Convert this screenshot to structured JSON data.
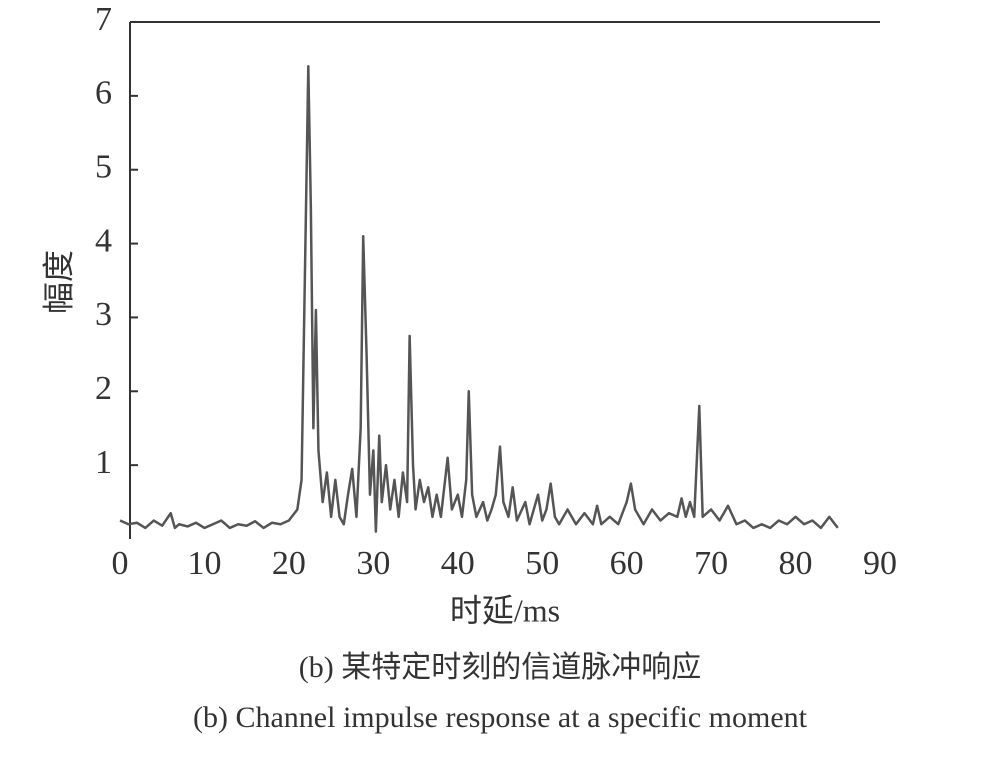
{
  "chart_data": {
    "type": "line",
    "y_label": "幅度",
    "x_label": "时延/ms",
    "captions": [
      "(b) 某特定时刻的信道脉冲响应",
      "(b) Channel impulse response at a specific moment"
    ],
    "x": [
      0,
      1,
      2,
      3,
      4,
      5,
      6,
      6.5,
      7,
      8,
      9,
      10,
      11,
      12,
      13,
      14,
      15,
      16,
      17,
      18,
      19,
      20,
      21,
      21.5,
      22,
      22.3,
      22.6,
      22.9,
      23.2,
      23.5,
      24,
      24.5,
      25,
      25.5,
      26,
      26.5,
      27,
      27.5,
      28,
      28.5,
      28.8,
      29.2,
      29.6,
      30,
      30.3,
      30.7,
      31,
      31.5,
      32,
      32.5,
      33,
      33.5,
      34,
      34.3,
      34.7,
      35,
      35.5,
      36,
      36.5,
      37,
      37.5,
      38,
      38.8,
      39.3,
      40,
      40.5,
      41,
      41.3,
      41.7,
      42.2,
      43,
      43.5,
      44,
      44.5,
      45,
      45.4,
      46,
      46.5,
      47,
      48,
      48.5,
      49,
      49.5,
      50,
      50.5,
      51,
      51.5,
      52,
      53,
      54,
      55,
      56,
      56.5,
      57,
      58,
      59,
      60,
      60.5,
      61,
      62,
      63,
      64,
      65,
      66,
      66.5,
      67,
      67.5,
      68,
      68.6,
      69,
      70,
      71,
      72,
      73,
      74,
      75,
      76,
      77,
      78,
      79,
      80,
      81,
      82,
      83,
      84,
      85
    ],
    "series": [
      {
        "color": "#555555",
        "values": [
          0.25,
          0.2,
          0.22,
          0.15,
          0.25,
          0.18,
          0.35,
          0.15,
          0.2,
          0.17,
          0.22,
          0.15,
          0.2,
          0.25,
          0.15,
          0.2,
          0.18,
          0.24,
          0.15,
          0.22,
          0.2,
          0.25,
          0.4,
          0.8,
          4.3,
          6.4,
          4.5,
          1.5,
          3.1,
          1.2,
          0.5,
          0.9,
          0.3,
          0.8,
          0.3,
          0.2,
          0.6,
          0.95,
          0.3,
          1.5,
          4.1,
          2.5,
          0.6,
          1.2,
          0.1,
          1.4,
          0.5,
          1.0,
          0.4,
          0.8,
          0.3,
          0.9,
          0.5,
          2.75,
          1.0,
          0.4,
          0.8,
          0.5,
          0.7,
          0.3,
          0.6,
          0.3,
          1.1,
          0.4,
          0.6,
          0.3,
          0.8,
          2.0,
          0.6,
          0.3,
          0.5,
          0.25,
          0.4,
          0.6,
          1.25,
          0.5,
          0.3,
          0.7,
          0.25,
          0.5,
          0.2,
          0.4,
          0.6,
          0.25,
          0.4,
          0.75,
          0.3,
          0.2,
          0.4,
          0.2,
          0.35,
          0.2,
          0.45,
          0.2,
          0.3,
          0.2,
          0.5,
          0.75,
          0.4,
          0.2,
          0.4,
          0.25,
          0.35,
          0.3,
          0.55,
          0.3,
          0.5,
          0.3,
          1.8,
          0.3,
          0.4,
          0.25,
          0.45,
          0.2,
          0.25,
          0.15,
          0.2,
          0.15,
          0.25,
          0.2,
          0.3,
          0.2,
          0.25,
          0.15,
          0.3,
          0.15
        ]
      }
    ],
    "xlim": [
      0,
      90
    ],
    "xticks": [
      0,
      10,
      20,
      30,
      40,
      50,
      60,
      70,
      80,
      90
    ],
    "ylim": [
      0,
      7
    ],
    "yticks": [
      1,
      2,
      3,
      4,
      5,
      6,
      7
    ],
    "grid": false
  }
}
